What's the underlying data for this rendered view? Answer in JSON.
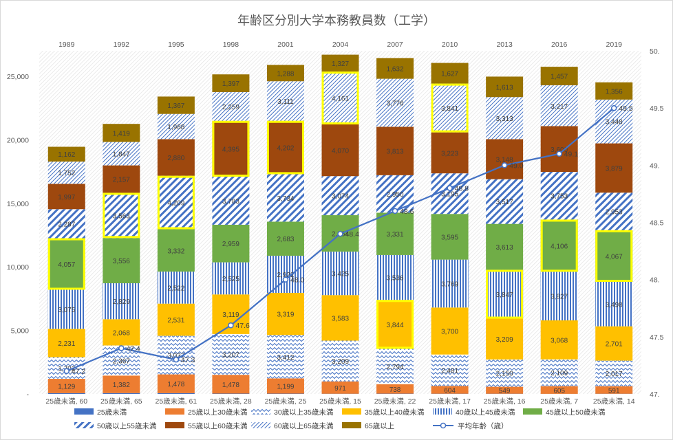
{
  "chart_data": {
    "type": "bar",
    "stacked": true,
    "title": "年齢区分別大学本務教員数（工学）",
    "years": [
      "1989",
      "1992",
      "1995",
      "1998",
      "2001",
      "2004",
      "2007",
      "2010",
      "2013",
      "2016",
      "2019"
    ],
    "categories": [
      "25歳未満, 60",
      "25歳未満, 65",
      "25歳未満, 61",
      "25歳未満, 28",
      "25歳未満, 25",
      "25歳未満, 15",
      "25歳未満, 22",
      "25歳未満, 17",
      "25歳未満, 16",
      "25歳未満, 7",
      "25歳未満, 14"
    ],
    "y_left": {
      "min": 0,
      "max": 27000,
      "ticks": [
        0,
        5000,
        10000,
        15000,
        20000,
        25000
      ],
      "tick_labels": [
        "-",
        "5,000",
        "10,000",
        "15,000",
        "20,000",
        "25,000"
      ]
    },
    "y_right": {
      "min": 47.0,
      "max": 50.0,
      "ticks": [
        47.0,
        47.5,
        48.0,
        48.5,
        49.0,
        49.5,
        50.0
      ],
      "tick_labels": [
        "47.",
        "47.5",
        "48.",
        "48.5",
        "49.",
        "49.5",
        "50."
      ]
    },
    "series": [
      {
        "name": "25歳未満",
        "color": "#4472C4",
        "pattern": "solid",
        "values": [
          60,
          65,
          61,
          28,
          25,
          15,
          22,
          17,
          16,
          7,
          14
        ],
        "labels": [
          "",
          "",
          "",
          "",
          "",
          "",
          "",
          "",
          "",
          "",
          ""
        ]
      },
      {
        "name": "25歳以上30歳未満",
        "color": "#ED7D31",
        "pattern": "solid",
        "values": [
          1129,
          1382,
          1478,
          1478,
          1199,
          971,
          738,
          604,
          549,
          605,
          591
        ],
        "labels": [
          "1,129",
          "1,382",
          "1,478",
          "1,478",
          "1,199",
          "971",
          "738",
          "604",
          "549",
          "605",
          "591"
        ]
      },
      {
        "name": "30歳以上35歳未満",
        "color": "#4472C4",
        "pattern": "zigzag",
        "values": [
          1702,
          2367,
          3037,
          3207,
          3412,
          3209,
          2794,
          2481,
          2150,
          2109,
          2017
        ],
        "labels": [
          "1,702",
          "2,367",
          "3,037",
          "3,207",
          "3,412",
          "3,209",
          "2,794",
          "2,481",
          "2,150",
          "2,109",
          "2,017"
        ]
      },
      {
        "name": "35歳以上40歳未満",
        "color": "#FFC000",
        "pattern": "solid",
        "values": [
          2231,
          2068,
          2531,
          3119,
          3319,
          3583,
          3844,
          3700,
          3209,
          3068,
          2701
        ],
        "labels": [
          "2,231",
          "2,068",
          "2,531",
          "3,119",
          "3,319",
          "3,583",
          "3,844",
          "3,700",
          "3,209",
          "3,068",
          "2,701"
        ]
      },
      {
        "name": "40歳以上45歳未満",
        "color": "#4472C4",
        "pattern": "vstripe",
        "values": [
          3075,
          2829,
          2522,
          2525,
          2922,
          3425,
          3536,
          3769,
          3847,
          3827,
          3498
        ],
        "labels": [
          "3,075",
          "2,829",
          "2,522",
          "2,525",
          "2,922",
          "3,425",
          "3,536",
          "3,769",
          "3,847",
          "3,827",
          "3,498"
        ]
      },
      {
        "name": "45歳以上50歳未満",
        "color": "#70AD47",
        "pattern": "solid",
        "values": [
          4057,
          3556,
          3332,
          2959,
          2683,
          2864,
          3331,
          3595,
          3613,
          4106,
          4067
        ],
        "labels": [
          "4,057",
          "3,556",
          "3,332",
          "2,959",
          "2,683",
          "2,864",
          "3,331",
          "3,595",
          "3,613",
          "4,106",
          "4,067"
        ]
      },
      {
        "name": "50歳以上55歳未満",
        "color": "#4472C4",
        "pattern": "diag",
        "values": [
          2287,
          3563,
          4209,
          3783,
          3734,
          3074,
          2950,
          3195,
          3517,
          3753,
          2953
        ],
        "labels": [
          "2,287",
          "3,563",
          "4,209",
          "3,783",
          "3,734",
          "3,074",
          "2,950",
          "3,195",
          "3,517",
          "3,753",
          "2,953"
        ]
      },
      {
        "name": "55歳以上60歳未満",
        "color": "#9E480E",
        "pattern": "solid",
        "values": [
          1997,
          2157,
          2880,
          4395,
          4202,
          4070,
          3813,
          3223,
          3148,
          3600,
          3879
        ],
        "labels": [
          "1,997",
          "2,157",
          "2,880",
          "4,395",
          "4,202",
          "4,070",
          "3,813",
          "3,223",
          "3,148",
          "3,600",
          "3,879"
        ]
      },
      {
        "name": "60歳以上65歳未満",
        "color": "#4472C4",
        "pattern": "lightdiag",
        "values": [
          1752,
          1847,
          1988,
          2259,
          3111,
          4161,
          3776,
          3841,
          3313,
          3217,
          3448
        ],
        "labels": [
          "1,752",
          "1,847",
          "1,988",
          "2,259",
          "3,111",
          "4,161",
          "3,776",
          "3,841",
          "3,313",
          "3,217",
          "3,448"
        ]
      },
      {
        "name": "65歳以上",
        "color": "#997300",
        "pattern": "solid",
        "values": [
          1162,
          1419,
          1367,
          1397,
          1288,
          1327,
          1632,
          1627,
          1613,
          1457,
          1356
        ],
        "labels": [
          "1,162",
          "1,419",
          "1,367",
          "1,397",
          "1,288",
          "1,327",
          "1,632",
          "1,627",
          "1,613",
          "1,457",
          "1,356"
        ]
      }
    ],
    "line": {
      "name": "平均年齢（歳）",
      "color": "#4472C4",
      "values": [
        47.2,
        47.4,
        47.3,
        47.6,
        48.0,
        48.4,
        48.6,
        48.8,
        49.0,
        49.1,
        49.5
      ],
      "labels": [
        "47.2",
        "47.4",
        "47.3",
        "47.6",
        "48.0",
        "48.4",
        "48.6",
        "48.8",
        "49.0",
        "49.1",
        "49.5"
      ]
    },
    "highlights": [
      {
        "bar": 0,
        "series": 5
      },
      {
        "bar": 1,
        "series": 6
      },
      {
        "bar": 2,
        "series": 6
      },
      {
        "bar": 3,
        "series": 7
      },
      {
        "bar": 4,
        "series": 7
      },
      {
        "bar": 5,
        "series": 8
      },
      {
        "bar": 6,
        "series": 3
      },
      {
        "bar": 7,
        "series": 8
      },
      {
        "bar": 8,
        "series": 4
      },
      {
        "bar": 9,
        "series": 5
      },
      {
        "bar": 10,
        "series": 5
      }
    ],
    "highlight_color": "#FFFF00"
  }
}
